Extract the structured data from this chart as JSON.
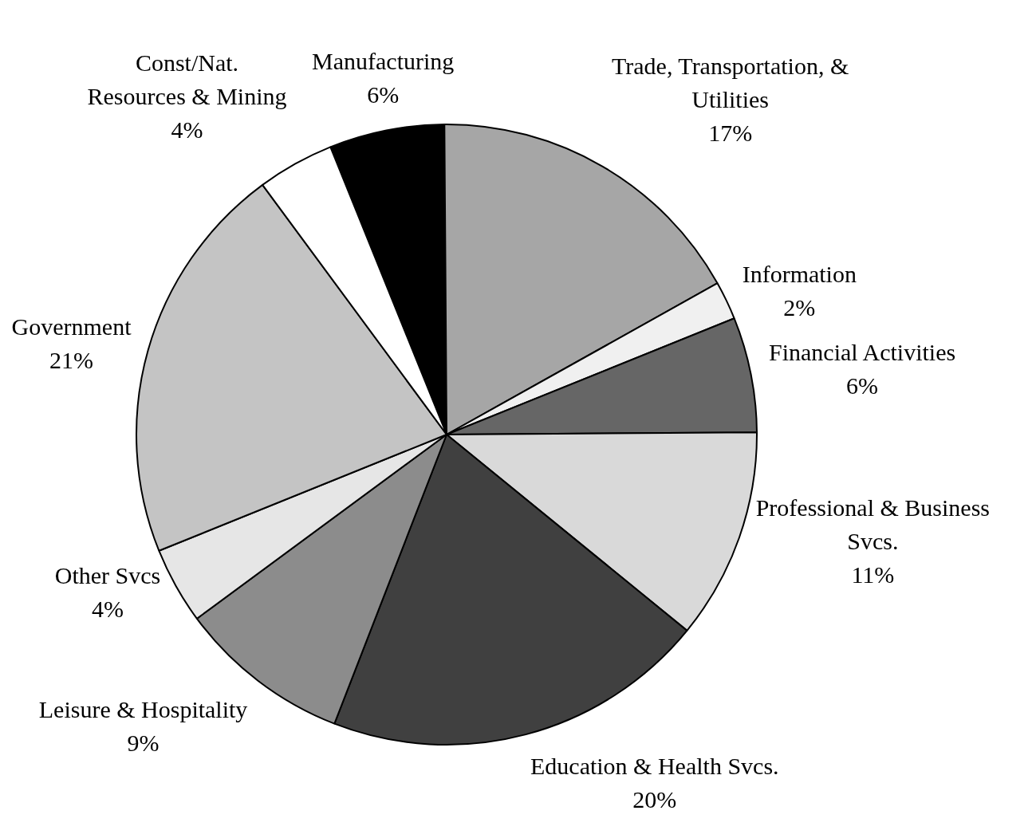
{
  "chart_data": {
    "type": "pie",
    "categories": [
      "Manufacturing",
      "Trade, Transportation, &\nUtilities",
      "Information",
      "Financial Activities",
      "Professional & Business\nSvcs.",
      "Education & Health Svcs.",
      "Leisure & Hospitality",
      "Other Svcs",
      "Government",
      "Const/Nat.\nResources & Mining"
    ],
    "values": [
      6,
      17,
      2,
      6,
      11,
      20,
      9,
      4,
      21,
      4
    ],
    "colors": [
      "#000000",
      "#a6a6a6",
      "#f0f0f0",
      "#666666",
      "#d9d9d9",
      "#404040",
      "#8c8c8c",
      "#e6e6e6",
      "#c4c4c4",
      "#ffffff"
    ],
    "value_labels": [
      "6%",
      "17%",
      "2%",
      "6%",
      "11%",
      "20%",
      "9%",
      "4%",
      "21%",
      "4%"
    ],
    "legend": false
  }
}
